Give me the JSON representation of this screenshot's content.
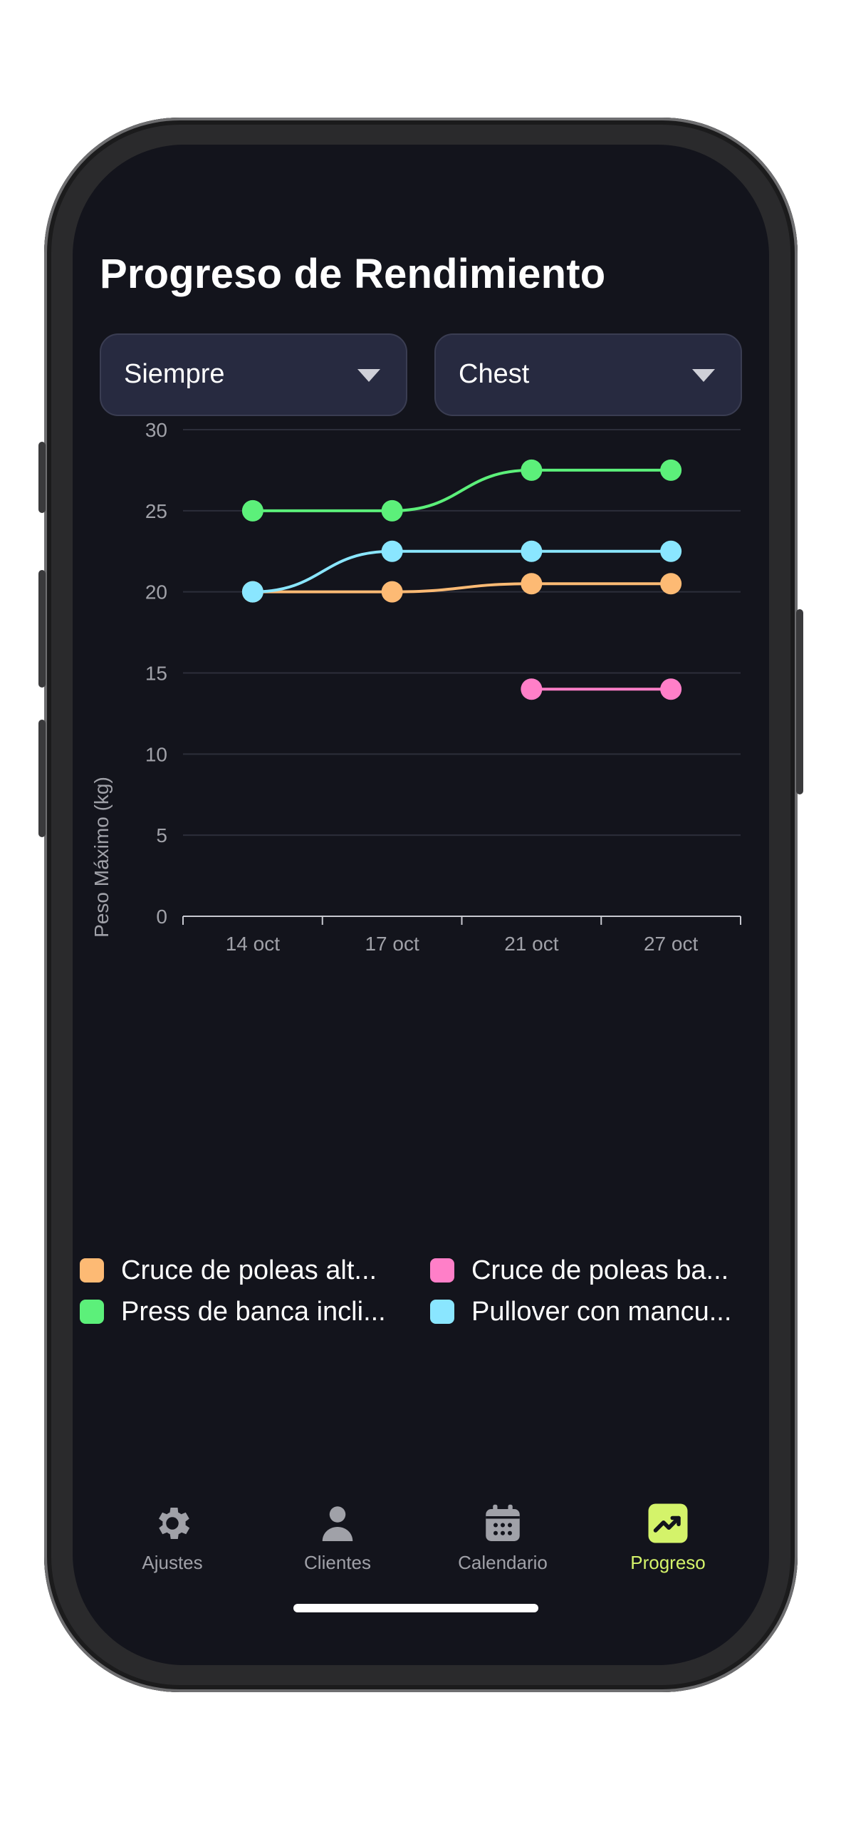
{
  "title": "Progreso de Rendimiento",
  "filters": {
    "period": "Siempre",
    "muscle_group": "Chest"
  },
  "colors": {
    "background": "#13141c",
    "accent": "#d4f36a",
    "dropdown_bg": "#272a40"
  },
  "chart_data": {
    "type": "line",
    "categories": [
      "14 oct",
      "17 oct",
      "21 oct",
      "27 oct"
    ],
    "ylabel": "Peso Máximo (kg)",
    "ylim": [
      0,
      30
    ],
    "yticks": [
      "0",
      "5",
      "10",
      "15",
      "20",
      "25",
      "30"
    ],
    "ytick_values": [
      0,
      5,
      10,
      15,
      20,
      25,
      30
    ],
    "grid": true,
    "legend": "bottom",
    "series": [
      {
        "name": "Cruce de poleas alt...",
        "color": "#fdba74",
        "values": [
          20,
          20,
          20.5,
          20.5
        ]
      },
      {
        "name": "Cruce de poleas ba...",
        "color": "#ff7fc8",
        "values": [
          null,
          null,
          14,
          14
        ]
      },
      {
        "name": "Press de banca incli...",
        "color": "#5cf07a",
        "values": [
          25,
          25,
          27.5,
          27.5
        ]
      },
      {
        "name": "Pullover con mancu...",
        "color": "#8ae6ff",
        "values": [
          20,
          22.5,
          22.5,
          22.5
        ]
      }
    ]
  },
  "tabs": [
    {
      "label": "Ajustes",
      "icon": "gear-icon",
      "active": false
    },
    {
      "label": "Clientes",
      "icon": "person-icon",
      "active": false
    },
    {
      "label": "Calendario",
      "icon": "calendar-icon",
      "active": false
    },
    {
      "label": "Progreso",
      "icon": "trending-up-icon",
      "active": true
    }
  ]
}
